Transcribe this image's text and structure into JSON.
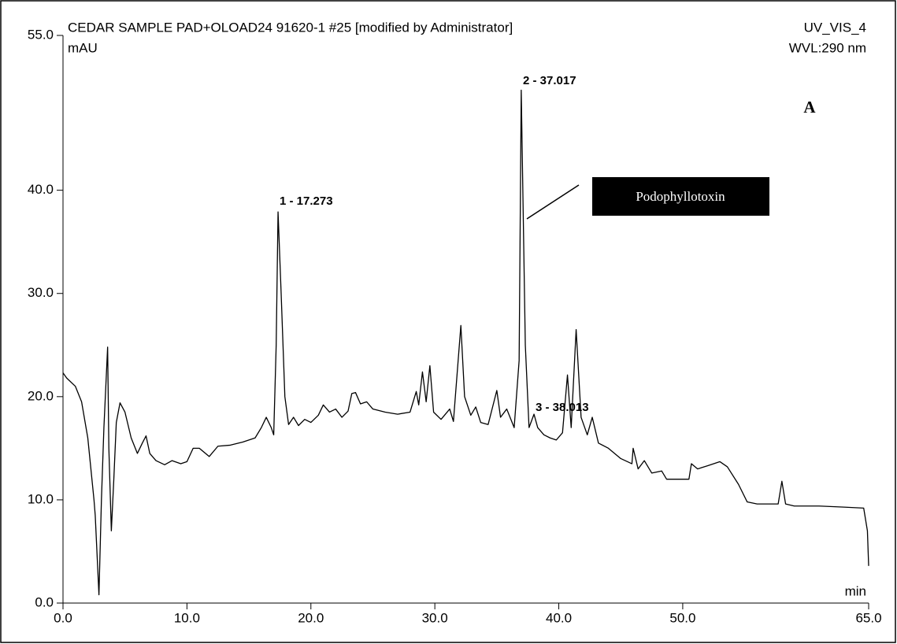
{
  "chart_data": {
    "type": "line",
    "title": "CEDAR SAMPLE PAD+OLOAD24 91620-1 #25 [modified by Administrator]",
    "channel": "UV_VIS_4",
    "y_label": "mAU",
    "wavelength": "WVL:290 nm",
    "x_label": "min",
    "panel_label": "A",
    "callout": "Podophyllotoxin",
    "peak_labels": [
      "1 - 17.273",
      "2 - 37.017",
      "3 - 38.013"
    ],
    "x": [
      0,
      0.3,
      1,
      1.5,
      2,
      2.5,
      2.6,
      2.9,
      3.1,
      3.3,
      3.6,
      3.7,
      3.9,
      4.1,
      4.3,
      4.6,
      5,
      5.5,
      6,
      6.4,
      6.7,
      7,
      7.5,
      8.2,
      8.8,
      9.5,
      10,
      10.5,
      11,
      11.8,
      12.5,
      13.5,
      14.5,
      15.5,
      16,
      16.4,
      16.8,
      17,
      17.2,
      17.35,
      17.6,
      17.9,
      18.2,
      18.6,
      19,
      19.5,
      20,
      20.6,
      21,
      21.5,
      22,
      22.5,
      23,
      23.3,
      23.6,
      24,
      24.5,
      25,
      26,
      27,
      28,
      28.5,
      28.7,
      29,
      29.3,
      29.6,
      29.9,
      30.5,
      31.2,
      31.5,
      32.1,
      32.4,
      32.9,
      33.3,
      33.7,
      34.3,
      35,
      35.3,
      35.8,
      36.4,
      36.8,
      36.97,
      37.3,
      37.6,
      38,
      38.3,
      38.8,
      39.3,
      39.8,
      40.3,
      40.7,
      41,
      41.4,
      41.8,
      42.3,
      42.7,
      43.2,
      44,
      45,
      45.9,
      46,
      46.4,
      46.9,
      47.5,
      48.3,
      48.7,
      49.5,
      50.5,
      50.7,
      51.2,
      52,
      53,
      53.6,
      54.5,
      55.2,
      56,
      57,
      57.7,
      58,
      58.3,
      59,
      61,
      63,
      64.6,
      64.9,
      65
    ],
    "series": [
      {
        "name": "UV_VIS_4",
        "color": "#000000",
        "values": [
          22.3,
          21.8,
          21,
          19.5,
          16,
          10,
          8.5,
          0.8,
          10,
          17,
          24.8,
          15,
          7,
          12,
          17.5,
          19.4,
          18.5,
          16,
          14.5,
          15.5,
          16.2,
          14.5,
          13.8,
          13.4,
          13.8,
          13.5,
          13.7,
          15,
          15,
          14.2,
          15.2,
          15.3,
          15.6,
          16,
          17,
          18,
          17,
          16.3,
          25,
          37.9,
          30,
          20,
          17.3,
          18,
          17.2,
          17.8,
          17.5,
          18.2,
          19.2,
          18.5,
          18.8,
          18,
          18.6,
          20.3,
          20.4,
          19.3,
          19.5,
          18.8,
          18.5,
          18.3,
          18.5,
          20.5,
          19.2,
          22.4,
          19.5,
          23,
          18.5,
          17.8,
          18.8,
          17.6,
          26.9,
          20,
          18.2,
          19,
          17.5,
          17.3,
          20.6,
          18,
          18.8,
          17,
          23.5,
          49.7,
          25,
          17,
          18.3,
          17,
          16.3,
          16,
          15.8,
          16.5,
          22.1,
          17,
          26.5,
          18,
          16.3,
          18,
          15.5,
          15,
          14,
          13.5,
          15,
          13,
          13.8,
          12.6,
          12.8,
          12,
          12,
          12,
          13.5,
          13,
          13.3,
          13.7,
          13.2,
          11.5,
          9.8,
          9.6,
          9.6,
          9.6,
          11.8,
          9.6,
          9.4,
          9.4,
          9.3,
          9.2,
          7,
          3.6
        ]
      }
    ],
    "xlim": [
      0,
      65
    ],
    "ylim": [
      0,
      55
    ],
    "xticks": [
      {
        "value": 0,
        "label": "0.0"
      },
      {
        "value": 10,
        "label": "10.0"
      },
      {
        "value": 20,
        "label": "20.0"
      },
      {
        "value": 30,
        "label": "30.0"
      },
      {
        "value": 40,
        "label": "40.0"
      },
      {
        "value": 50,
        "label": "50.0"
      },
      {
        "value": 65,
        "label": "65.0"
      }
    ],
    "yticks": [
      {
        "value": 0,
        "label": "0.0"
      },
      {
        "value": 10,
        "label": "10.0"
      },
      {
        "value": 20,
        "label": "20.0"
      },
      {
        "value": 30,
        "label": "30.0"
      },
      {
        "value": 40,
        "label": "40.0"
      },
      {
        "value": 55,
        "label": "55.0"
      }
    ],
    "grid": false
  }
}
